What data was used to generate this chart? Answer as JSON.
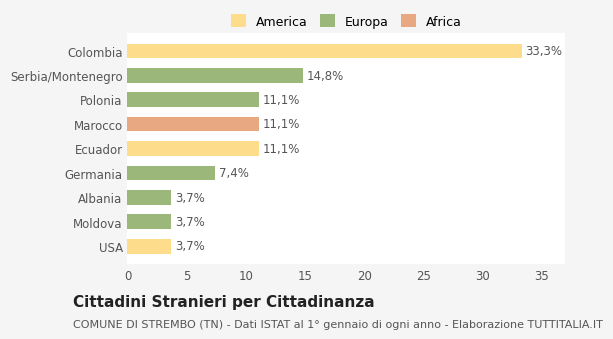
{
  "categories": [
    "Colombia",
    "Serbia/Montenegro",
    "Polonia",
    "Marocco",
    "Ecuador",
    "Germania",
    "Albania",
    "Moldova",
    "USA"
  ],
  "values": [
    33.3,
    14.8,
    11.1,
    11.1,
    11.1,
    7.4,
    3.7,
    3.7,
    3.7
  ],
  "labels": [
    "33,3%",
    "14,8%",
    "11,1%",
    "11,1%",
    "11,1%",
    "7,4%",
    "3,7%",
    "3,7%",
    "3,7%"
  ],
  "colors": [
    "#FDDD8B",
    "#9BB87A",
    "#9BB87A",
    "#E8A882",
    "#FDDD8B",
    "#9BB87A",
    "#9BB87A",
    "#9BB87A",
    "#FDDD8B"
  ],
  "legend": [
    {
      "label": "America",
      "color": "#FDDD8B"
    },
    {
      "label": "Europa",
      "color": "#9BB87A"
    },
    {
      "label": "Africa",
      "color": "#E8A882"
    }
  ],
  "xlim": [
    0,
    37
  ],
  "xticks": [
    0,
    5,
    10,
    15,
    20,
    25,
    30,
    35
  ],
  "title": "Cittadini Stranieri per Cittadinanza",
  "subtitle": "COMUNE DI STREMBO (TN) - Dati ISTAT al 1° gennaio di ogni anno - Elaborazione TUTTITALIA.IT",
  "bg_color": "#f5f5f5",
  "bar_bg_color": "#ffffff",
  "grid_color": "#ffffff",
  "label_fontsize": 8.5,
  "tick_fontsize": 8.5,
  "title_fontsize": 11,
  "subtitle_fontsize": 8
}
